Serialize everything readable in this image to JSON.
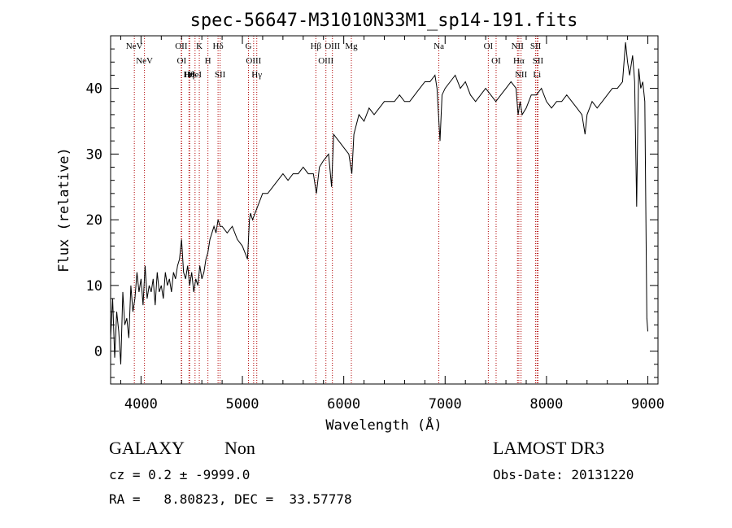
{
  "chart_data": {
    "type": "line",
    "title": "spec-56647-M31010N33M1_sp14-191.fits",
    "xlabel": "Wavelength (Å)",
    "ylabel": "Flux (relative)",
    "xlim": [
      3700,
      9100
    ],
    "ylim": [
      -5,
      48
    ],
    "xticks": [
      4000,
      5000,
      6000,
      7000,
      8000,
      9000
    ],
    "yticks": [
      0,
      10,
      20,
      30,
      40
    ],
    "series": [
      {
        "x": [
          3700,
          3720,
          3740,
          3760,
          3780,
          3800,
          3820,
          3840,
          3860,
          3880,
          3900,
          3920,
          3940,
          3960,
          3980,
          4000,
          4020,
          4040,
          4060,
          4080,
          4100,
          4120,
          4140,
          4160,
          4180,
          4200,
          4220,
          4240,
          4260,
          4280,
          4300,
          4320,
          4340,
          4360,
          4380,
          4400,
          4420,
          4440,
          4460,
          4480,
          4500,
          4520,
          4540,
          4560,
          4580,
          4600,
          4620,
          4640,
          4660,
          4680,
          4700,
          4720,
          4740,
          4760,
          4780,
          4800,
          4850,
          4900,
          4950,
          5000,
          5050,
          5070,
          5080,
          5100,
          5150,
          5200,
          5250,
          5300,
          5350,
          5400,
          5450,
          5500,
          5550,
          5600,
          5650,
          5700,
          5730,
          5760,
          5800,
          5850,
          5880,
          5900,
          5950,
          6000,
          6050,
          6080,
          6100,
          6150,
          6200,
          6250,
          6300,
          6350,
          6400,
          6450,
          6500,
          6550,
          6600,
          6650,
          6700,
          6750,
          6800,
          6850,
          6900,
          6920,
          6950,
          6970,
          7000,
          7050,
          7100,
          7150,
          7200,
          7250,
          7300,
          7350,
          7400,
          7450,
          7500,
          7550,
          7600,
          7650,
          7700,
          7720,
          7740,
          7760,
          7800,
          7850,
          7900,
          7950,
          8000,
          8050,
          8100,
          8150,
          8200,
          8250,
          8300,
          8350,
          8380,
          8400,
          8450,
          8500,
          8550,
          8600,
          8650,
          8700,
          8750,
          8780,
          8800,
          8820,
          8850,
          8870,
          8890,
          8900,
          8910,
          8930,
          8950,
          8970,
          8990,
          9000
        ],
        "y": [
          2,
          8,
          -1,
          6,
          3,
          -2,
          9,
          4,
          5,
          2,
          10,
          6,
          8,
          12,
          9,
          11,
          7,
          13,
          8,
          10,
          9,
          11,
          7,
          12,
          9,
          10,
          8,
          12,
          10,
          11,
          9,
          12,
          11,
          13,
          14,
          17,
          12,
          11,
          13,
          10,
          12,
          9,
          11,
          10,
          13,
          11,
          12,
          14,
          15,
          17,
          18,
          19,
          18,
          20,
          19,
          19,
          18,
          19,
          17,
          16,
          14,
          20,
          21,
          20,
          22,
          24,
          24,
          25,
          26,
          27,
          26,
          27,
          27,
          28,
          27,
          27,
          24,
          28,
          29,
          30,
          25,
          33,
          32,
          31,
          30,
          27,
          33,
          36,
          35,
          37,
          36,
          37,
          38,
          38,
          38,
          39,
          38,
          38,
          39,
          40,
          41,
          41,
          42,
          40,
          32,
          39,
          40,
          41,
          42,
          40,
          41,
          39,
          38,
          39,
          40,
          39,
          38,
          39,
          40,
          41,
          40,
          36,
          38,
          36,
          37,
          39,
          39,
          40,
          38,
          37,
          38,
          38,
          39,
          38,
          37,
          36,
          33,
          36,
          38,
          37,
          38,
          39,
          40,
          40,
          41,
          47,
          44,
          42,
          45,
          41,
          22,
          34,
          43,
          40,
          41,
          38,
          5,
          3
        ]
      }
    ],
    "lines": [
      {
        "label": "NeV",
        "wave": 3934
      },
      {
        "label": "NeV",
        "wave": 4034
      },
      {
        "label": "OII",
        "wave": 4397
      },
      {
        "label": "OI",
        "wave": 4401
      },
      {
        "label": "Hη",
        "wave": 4473
      },
      {
        "label": "Hθ",
        "wave": 4480
      },
      {
        "label": "HeI",
        "wave": 4533
      },
      {
        "label": "K",
        "wave": 4575
      },
      {
        "label": "H",
        "wave": 4660
      },
      {
        "label": "Hδ",
        "wave": 4760
      },
      {
        "label": "SII",
        "wave": 4780
      },
      {
        "label": "G",
        "wave": 5060
      },
      {
        "label": "OIII",
        "wave": 5111
      },
      {
        "label": "Hγ",
        "wave": 5142
      },
      {
        "label": "Hβ",
        "wave": 5725
      },
      {
        "label": "OIII",
        "wave": 5824
      },
      {
        "label": "OIII",
        "wave": 5888
      },
      {
        "label": "Mg",
        "wave": 6075
      },
      {
        "label": "Na",
        "wave": 6938
      },
      {
        "label": "OI",
        "wave": 7426
      },
      {
        "label": "OI",
        "wave": 7503
      },
      {
        "label": "NII",
        "wave": 7714
      },
      {
        "label": "Hα",
        "wave": 7727
      },
      {
        "label": "NII",
        "wave": 7749
      },
      {
        "label": "SII",
        "wave": 7893
      },
      {
        "label": "SII",
        "wave": 7916
      },
      {
        "label": "Li",
        "wave": 7907
      }
    ],
    "grid": false
  },
  "footer": {
    "object_type": "GALAXY",
    "subclass": "Non",
    "survey": "LAMOST DR3",
    "cz": "cz = 0.2 ± -9999.0",
    "obs_date": "Obs-Date: 20131220",
    "coords": "RA =   8.80823, DEC =  33.57778"
  },
  "colors": {
    "line_marker": "#b00000",
    "spectrum": "#000000",
    "axis": "#000000"
  }
}
